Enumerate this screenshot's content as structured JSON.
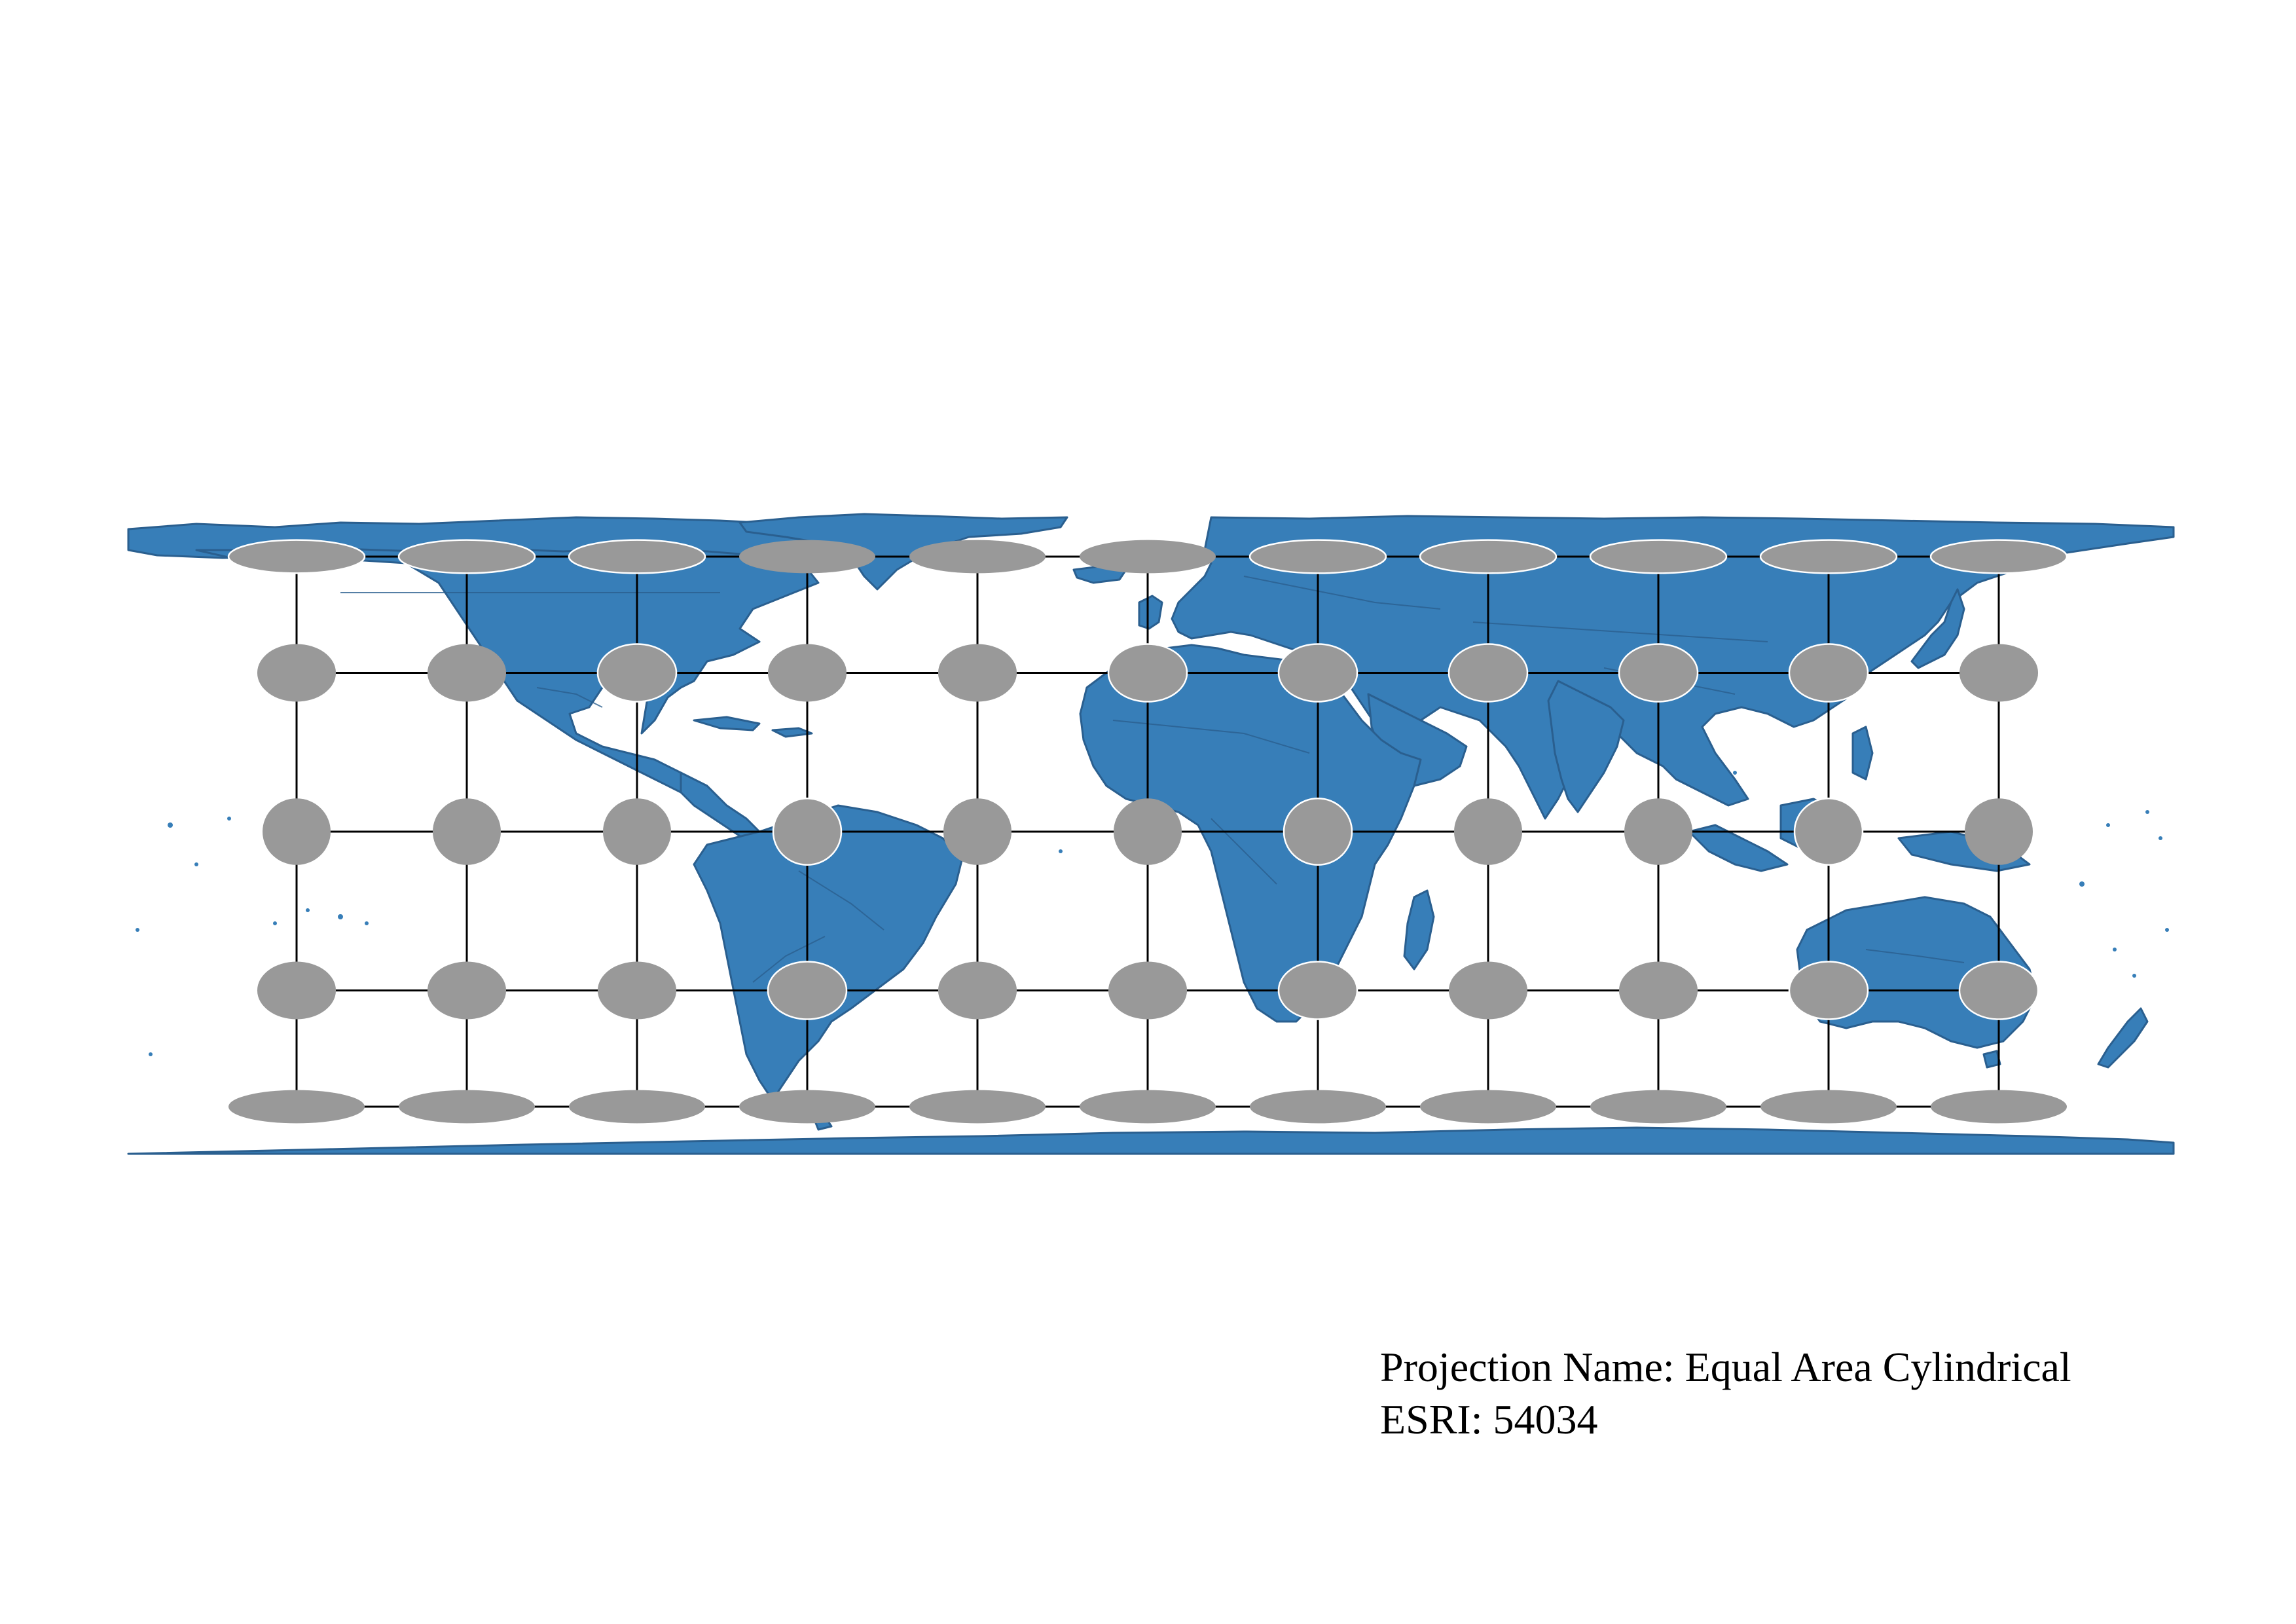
{
  "map": {
    "projection_label": "Projection Name: Equal Area Cylindrical",
    "code_label": "ESRI: 54034",
    "colors": {
      "land": "#377eb8",
      "land_outline": "#2a5f8f",
      "tissot_fill": "#999999",
      "tissot_outline_over_land": "#ffffff",
      "graticule": "#000000",
      "background": "#ffffff"
    },
    "graticule": {
      "longitudes_deg": [
        -150,
        -120,
        -90,
        -60,
        -30,
        0,
        30,
        60,
        90,
        120,
        150
      ],
      "latitudes_deg": [
        -60,
        -30,
        0,
        30,
        60
      ]
    },
    "tissot_indicatrices": {
      "longitudes_deg": [
        -150,
        -120,
        -90,
        -60,
        -30,
        0,
        30,
        60,
        90,
        120,
        150
      ],
      "latitudes_deg": [
        -60,
        -30,
        0,
        30,
        60
      ],
      "radius_deg": 6
    },
    "features": {
      "landmasses": [
        "North America",
        "Greenland",
        "South America",
        "Europe",
        "Africa",
        "Asia",
        "Arabian Peninsula",
        "India",
        "Australia",
        "Antarctica",
        "Madagascar",
        "Japan",
        "New Zealand",
        "British Isles",
        "Iceland",
        "Indonesia",
        "Cuba"
      ]
    }
  }
}
